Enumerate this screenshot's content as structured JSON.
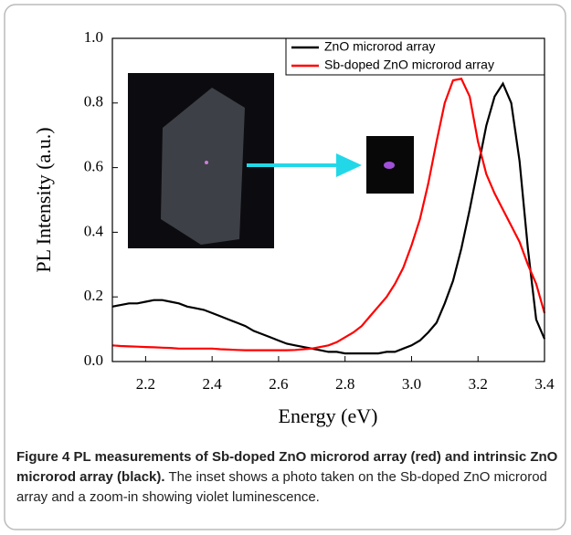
{
  "chart_data": {
    "type": "line",
    "xlabel": "Energy (eV)",
    "ylabel": "PL Intensity (a.u.)",
    "x": [
      2.1,
      2.125,
      2.15,
      2.175,
      2.2,
      2.225,
      2.25,
      2.275,
      2.3,
      2.325,
      2.35,
      2.375,
      2.4,
      2.425,
      2.45,
      2.475,
      2.5,
      2.525,
      2.55,
      2.575,
      2.6,
      2.625,
      2.65,
      2.675,
      2.7,
      2.725,
      2.75,
      2.775,
      2.8,
      2.825,
      2.85,
      2.875,
      2.9,
      2.925,
      2.95,
      2.975,
      3.0,
      3.025,
      3.05,
      3.075,
      3.1,
      3.125,
      3.15,
      3.175,
      3.2,
      3.225,
      3.25,
      3.275,
      3.3,
      3.325,
      3.35,
      3.375,
      3.4
    ],
    "series": [
      {
        "name": "ZnO microrod array",
        "color": "#000000",
        "values": [
          0.17,
          0.175,
          0.18,
          0.18,
          0.185,
          0.19,
          0.19,
          0.185,
          0.18,
          0.17,
          0.165,
          0.16,
          0.15,
          0.14,
          0.13,
          0.12,
          0.11,
          0.095,
          0.085,
          0.075,
          0.065,
          0.055,
          0.05,
          0.045,
          0.04,
          0.035,
          0.03,
          0.03,
          0.025,
          0.025,
          0.025,
          0.025,
          0.025,
          0.03,
          0.03,
          0.04,
          0.05,
          0.065,
          0.09,
          0.12,
          0.18,
          0.25,
          0.35,
          0.47,
          0.6,
          0.73,
          0.82,
          0.86,
          0.8,
          0.62,
          0.35,
          0.13,
          0.07
        ]
      },
      {
        "name": "Sb-doped ZnO microrod array",
        "color": "#ff0000",
        "values": [
          0.05,
          0.048,
          0.047,
          0.046,
          0.045,
          0.044,
          0.043,
          0.042,
          0.04,
          0.04,
          0.04,
          0.04,
          0.04,
          0.038,
          0.037,
          0.036,
          0.035,
          0.035,
          0.035,
          0.035,
          0.035,
          0.035,
          0.036,
          0.038,
          0.04,
          0.045,
          0.05,
          0.06,
          0.075,
          0.09,
          0.11,
          0.14,
          0.17,
          0.2,
          0.24,
          0.29,
          0.36,
          0.44,
          0.55,
          0.68,
          0.8,
          0.87,
          0.875,
          0.82,
          0.68,
          0.58,
          0.52,
          0.47,
          0.42,
          0.37,
          0.3,
          0.24,
          0.15
        ]
      }
    ],
    "xlim": [
      2.1,
      3.4
    ],
    "xticks": [
      2.2,
      2.4,
      2.6,
      2.8,
      {
        "value": 3,
        "label": "3.0"
      },
      3.2,
      3.4
    ],
    "ylim": [
      0,
      1
    ],
    "yticks": [
      {
        "value": 0,
        "label": "0.0"
      },
      0.2,
      0.4,
      0.6,
      0.8,
      {
        "value": 1,
        "label": "1.0"
      }
    ],
    "legend": "upper right",
    "caption": {
      "label": "Figure 4",
      "title": "PL measurements of Sb-doped ZnO microrod array (red) and intrinsic ZnO microrod array (black).",
      "text": "The inset shows a photo taken on the Sb-doped ZnO microrod array and a zoom-in showing violet luminescence."
    }
  }
}
